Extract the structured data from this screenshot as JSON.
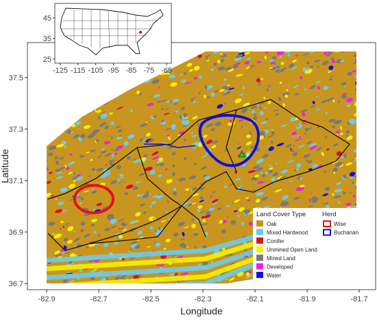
{
  "map": {
    "xlabel": "Longitude",
    "ylabel": "Latitude",
    "xlim": [
      -82.974,
      -81.637
    ],
    "ylim": [
      36.676,
      37.636
    ],
    "xticks": [
      -82.9,
      -82.7,
      -82.5,
      -82.3,
      -82.1,
      -81.9,
      -81.7
    ],
    "yticks": [
      36.7,
      36.9,
      37.1,
      37.3,
      37.5
    ],
    "legend": {
      "land_cover_title": "Land Cover Type",
      "land_cover": [
        {
          "name": "Oak",
          "color": "#c8961e"
        },
        {
          "name": "Mixed Hardwood",
          "color": "#6fcbe8"
        },
        {
          "name": "Conifer",
          "color": "#d8102a"
        },
        {
          "name": "Unmined Open Land",
          "color": "#f5f000"
        },
        {
          "name": "Mined Land",
          "color": "#7a7a7a"
        },
        {
          "name": "Developed",
          "color": "#f020e0"
        },
        {
          "name": "Water",
          "color": "#1010e0"
        }
      ],
      "herd_title": "Herd",
      "herd": [
        {
          "name": "Wise",
          "color": "#e8101a"
        },
        {
          "name": "Buchanan",
          "color": "#1010d8"
        }
      ]
    },
    "inset": {
      "xlim": [
        -128.1,
        -62.3
      ],
      "ylim": [
        23,
        52
      ],
      "xticks": [
        -125,
        -115,
        -105,
        -95,
        -85,
        -75,
        -65
      ],
      "yticks": [
        25,
        35,
        45
      ]
    }
  }
}
